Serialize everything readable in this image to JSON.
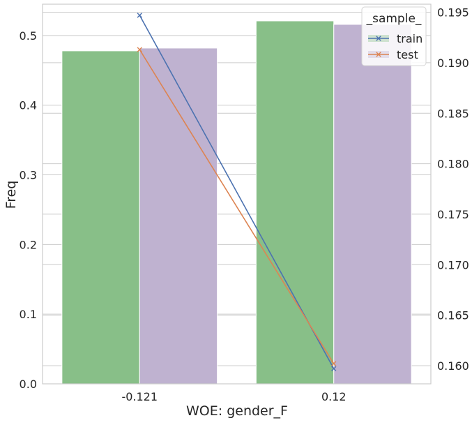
{
  "chart_data": {
    "type": "bar",
    "title": "",
    "xlabel": "WOE: gender_F",
    "ylabel": "Freq",
    "categories": [
      "-0.121",
      "0.12"
    ],
    "bar_series": [
      {
        "name": "train",
        "values": [
          0.478,
          0.521
        ],
        "color": "#88bf88"
      },
      {
        "name": "test",
        "values": [
          0.482,
          0.516
        ],
        "color": "#bfb2d0"
      }
    ],
    "ylim": [
      0,
      0.545
    ],
    "yticks": [
      "0.0",
      "0.1",
      "0.2",
      "0.3",
      "0.4",
      "0.5"
    ],
    "y2lim": [
      0.1582,
      0.1958
    ],
    "y2ticks": [
      "0.160",
      "0.165",
      "0.170",
      "0.175",
      "0.180",
      "0.185",
      "0.190",
      "0.195"
    ],
    "line_series": [
      {
        "name": "train",
        "values": [
          0.1947,
          0.1597
        ],
        "color": "#4c72b0",
        "marker": "x"
      },
      {
        "name": "test",
        "values": [
          0.1913,
          0.1602
        ],
        "color": "#dd8452",
        "marker": "x"
      }
    ],
    "legend": {
      "title": "_sample_",
      "position": "top-right",
      "entries": [
        "train",
        "test"
      ]
    },
    "grid": true
  }
}
